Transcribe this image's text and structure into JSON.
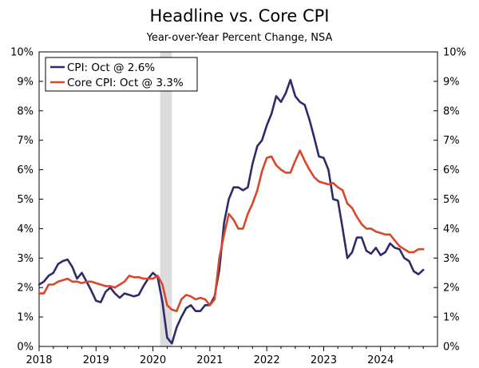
{
  "chart_data": {
    "type": "line",
    "title": "Headline vs. Core CPI",
    "subtitle": "Year-over-Year Percent Change, NSA",
    "ylim": [
      0,
      10
    ],
    "xlim": [
      2018.0,
      2025.0
    ],
    "y_ticks": [
      "0%",
      "1%",
      "2%",
      "3%",
      "4%",
      "5%",
      "6%",
      "7%",
      "8%",
      "9%",
      "10%"
    ],
    "x_ticks": [
      "2018",
      "2019",
      "2020",
      "2021",
      "2022",
      "2023",
      "2024"
    ],
    "recession_shading": {
      "start": 2020.125,
      "end": 2020.333
    },
    "colors": {
      "cpi": "#2e2a6b",
      "core": "#d9472b",
      "recession": "#dcdcdc",
      "axis": "#000000"
    },
    "series": [
      {
        "name": "CPI",
        "legend": "CPI: Oct @ 2.6%",
        "color": "#2e2a6b",
        "values": [
          2.1,
          2.2,
          2.4,
          2.5,
          2.8,
          2.9,
          2.95,
          2.7,
          2.3,
          2.5,
          2.2,
          1.9,
          1.55,
          1.5,
          1.85,
          2.0,
          1.8,
          1.65,
          1.8,
          1.75,
          1.7,
          1.75,
          2.05,
          2.3,
          2.5,
          2.35,
          1.5,
          0.3,
          0.1,
          0.65,
          1.0,
          1.3,
          1.4,
          1.2,
          1.2,
          1.4,
          1.4,
          1.7,
          2.6,
          4.2,
          5.0,
          5.4,
          5.4,
          5.3,
          5.4,
          6.2,
          6.8,
          7.0,
          7.5,
          7.9,
          8.5,
          8.3,
          8.6,
          9.05,
          8.5,
          8.3,
          8.2,
          7.7,
          7.1,
          6.45,
          6.4,
          6.0,
          5.0,
          4.95,
          4.0,
          3.0,
          3.2,
          3.7,
          3.7,
          3.25,
          3.15,
          3.35,
          3.1,
          3.2,
          3.5,
          3.35,
          3.3,
          3.0,
          2.9,
          2.55,
          2.45,
          2.6
        ]
      },
      {
        "name": "Core CPI",
        "legend": "Core CPI: Oct @ 3.3%",
        "color": "#d9472b",
        "values": [
          1.8,
          1.8,
          2.1,
          2.1,
          2.2,
          2.25,
          2.3,
          2.2,
          2.2,
          2.15,
          2.2,
          2.2,
          2.15,
          2.1,
          2.05,
          2.05,
          2.0,
          2.1,
          2.2,
          2.4,
          2.35,
          2.35,
          2.3,
          2.3,
          2.3,
          2.4,
          2.1,
          1.4,
          1.25,
          1.2,
          1.6,
          1.75,
          1.7,
          1.6,
          1.65,
          1.6,
          1.4,
          1.6,
          3.0,
          3.8,
          4.5,
          4.3,
          4.0,
          4.0,
          4.5,
          4.85,
          5.3,
          5.95,
          6.4,
          6.45,
          6.15,
          6.0,
          5.9,
          5.9,
          6.3,
          6.65,
          6.3,
          6.0,
          5.75,
          5.6,
          5.55,
          5.5,
          5.55,
          5.4,
          5.3,
          4.85,
          4.7,
          4.4,
          4.15,
          4.0,
          4.0,
          3.9,
          3.85,
          3.8,
          3.8,
          3.6,
          3.4,
          3.3,
          3.2,
          3.2,
          3.3,
          3.3
        ]
      }
    ]
  }
}
